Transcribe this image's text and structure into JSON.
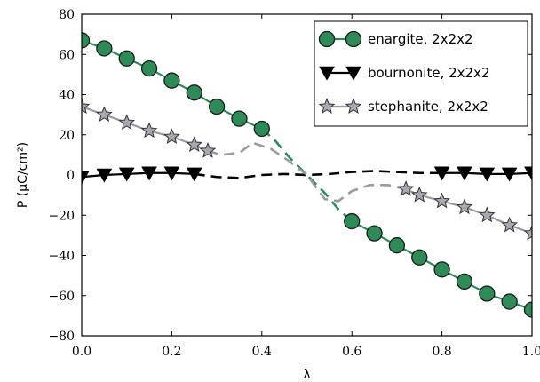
{
  "chart_data": {
    "type": "line",
    "xlabel": "λ",
    "ylabel": "P (μC/cm²)",
    "xlim": [
      0.0,
      1.0
    ],
    "ylim": [
      -80,
      80
    ],
    "xticks": [
      "0.0",
      "0.2",
      "0.4",
      "0.6",
      "0.8",
      "1.0"
    ],
    "yticks": [
      "80",
      "60",
      "40",
      "20",
      "0",
      "−20",
      "−40",
      "−60",
      "−80"
    ],
    "legend_position": "top-right",
    "series": [
      {
        "name": "enargite, 2x2x2",
        "color": "#2e8b57",
        "marker": "circle",
        "marker_fill": "#2e8b57",
        "x": [
          0.0,
          0.05,
          0.1,
          0.15,
          0.2,
          0.25,
          0.3,
          0.35,
          0.4,
          0.6,
          0.65,
          0.7,
          0.75,
          0.8,
          0.85,
          0.9,
          0.95,
          1.0
        ],
        "values": [
          67,
          63,
          58,
          53,
          47,
          41,
          34,
          28,
          23,
          -23,
          -29,
          -35,
          -41,
          -47,
          -53,
          -59,
          -63,
          -67
        ],
        "interpolation": {
          "x": [
            0.4,
            0.43,
            0.46,
            0.5,
            0.54,
            0.57,
            0.6
          ],
          "values": [
            23,
            17,
            9,
            0,
            -9,
            -17,
            -23
          ]
        }
      },
      {
        "name": "bournonite, 2x2x2",
        "color": "#000000",
        "marker": "triangle-down",
        "marker_fill": "#000000",
        "x": [
          0.0,
          0.05,
          0.1,
          0.15,
          0.2,
          0.25,
          0.8,
          0.85,
          0.9,
          0.95,
          1.0
        ],
        "values": [
          -1,
          0,
          0.5,
          1,
          1,
          0.5,
          1,
          1,
          0.5,
          0.5,
          1
        ],
        "interpolation": {
          "x": [
            0.25,
            0.3,
            0.35,
            0.4,
            0.45,
            0.5,
            0.55,
            0.6,
            0.65,
            0.7,
            0.75,
            0.8
          ],
          "values": [
            0.5,
            -1,
            -1.5,
            0,
            0.5,
            0,
            0.5,
            1.5,
            2,
            1.5,
            1,
            1
          ]
        }
      },
      {
        "name": "stephanite, 2x2x2",
        "color": "#9a9aa3",
        "marker": "star",
        "marker_fill": "#a8a8b0",
        "x": [
          0.0,
          0.05,
          0.1,
          0.15,
          0.2,
          0.25,
          0.28,
          0.72,
          0.75,
          0.8,
          0.85,
          0.9,
          0.95,
          1.0
        ],
        "values": [
          34,
          30,
          26,
          22,
          19,
          15,
          12,
          -7,
          -10,
          -13,
          -16,
          -20,
          -25,
          -29
        ],
        "interpolation": {
          "x": [
            0.28,
            0.31,
            0.35,
            0.38,
            0.42,
            0.46,
            0.5,
            0.54,
            0.57,
            0.6,
            0.64,
            0.68,
            0.72
          ],
          "values": [
            12,
            10,
            11,
            16,
            13,
            7,
            0,
            -12,
            -13,
            -8,
            -5,
            -5,
            -7
          ]
        }
      }
    ]
  }
}
